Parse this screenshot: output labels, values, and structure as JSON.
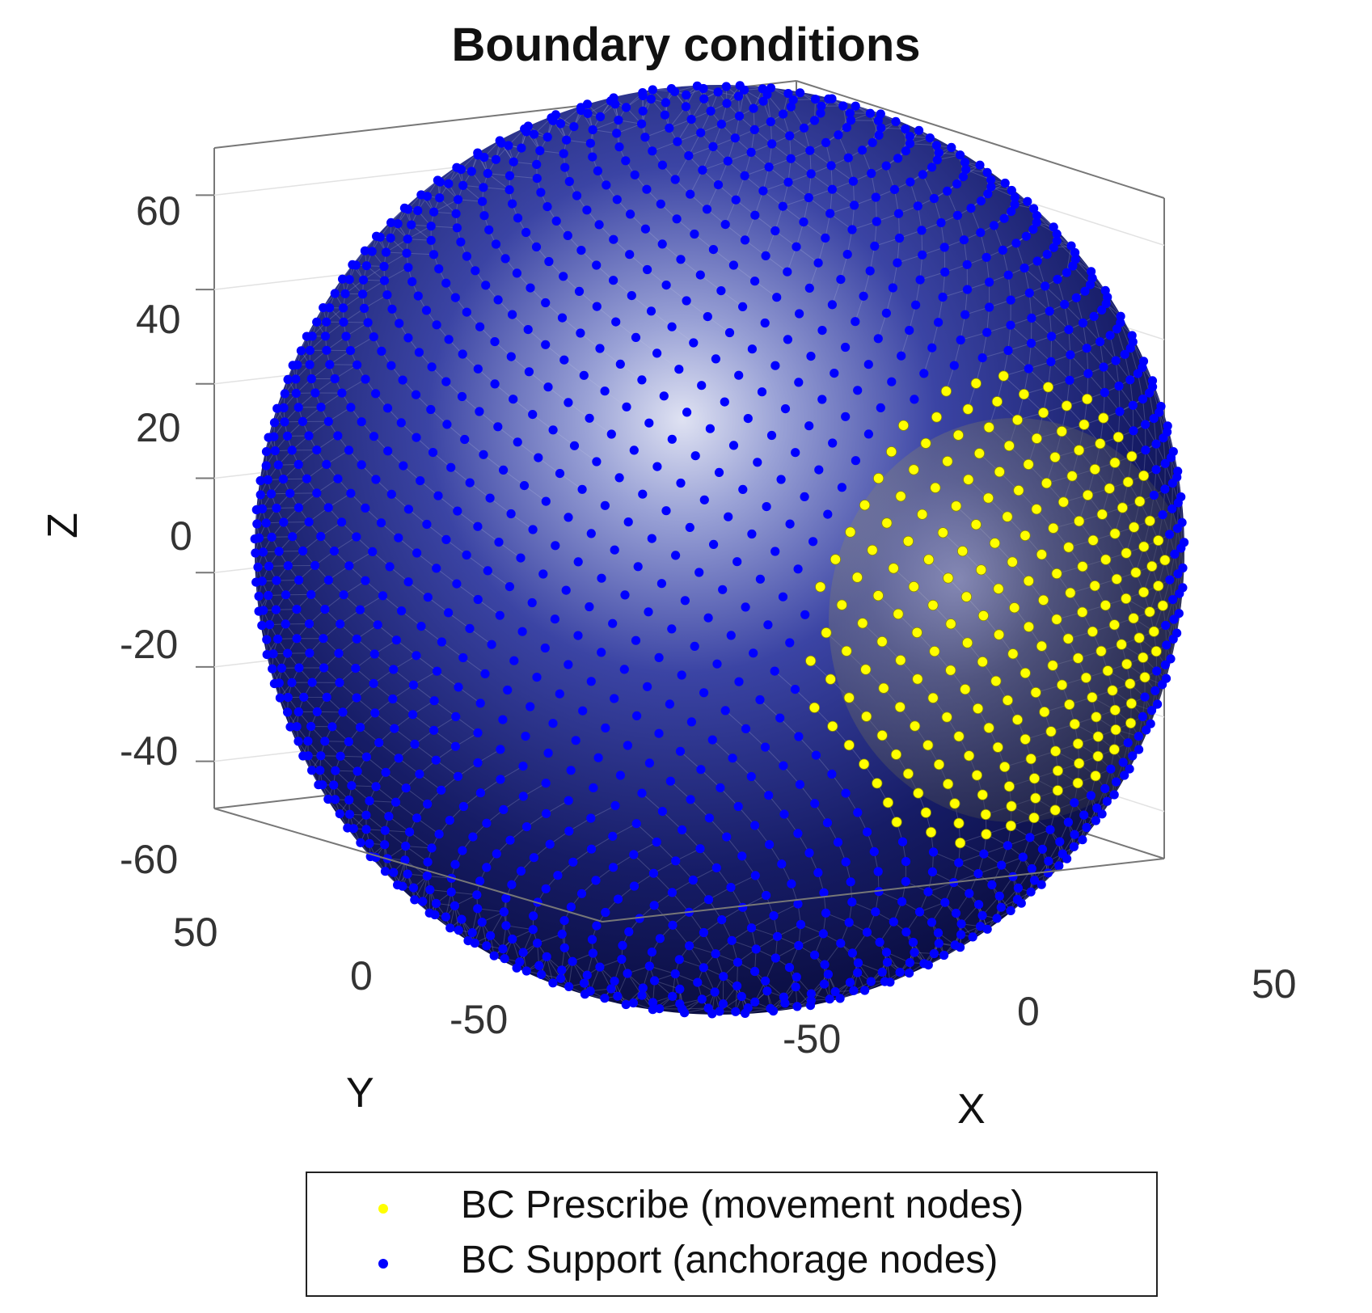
{
  "chart_data": {
    "type": "scatter",
    "title": "Boundary conditions",
    "xlabel": "X",
    "ylabel": "Y",
    "zlabel": "Z",
    "x_ticks": [
      "-50",
      "0",
      "50"
    ],
    "y_ticks": [
      "-50",
      "0",
      "50"
    ],
    "z_ticks": [
      "60",
      "40",
      "20",
      "0",
      "-20",
      "-40",
      "-60"
    ],
    "xlim": [
      -70,
      70
    ],
    "ylim": [
      -70,
      70
    ],
    "zlim": [
      -70,
      70
    ],
    "grid": true,
    "legend_position": "bottom",
    "series": [
      {
        "name": "BC Prescribe (movement nodes)",
        "color": "#ffff00",
        "marker": "dot"
      },
      {
        "name": "BC Support (anchorage nodes)",
        "color": "#0000ff",
        "marker": "dot"
      }
    ]
  }
}
